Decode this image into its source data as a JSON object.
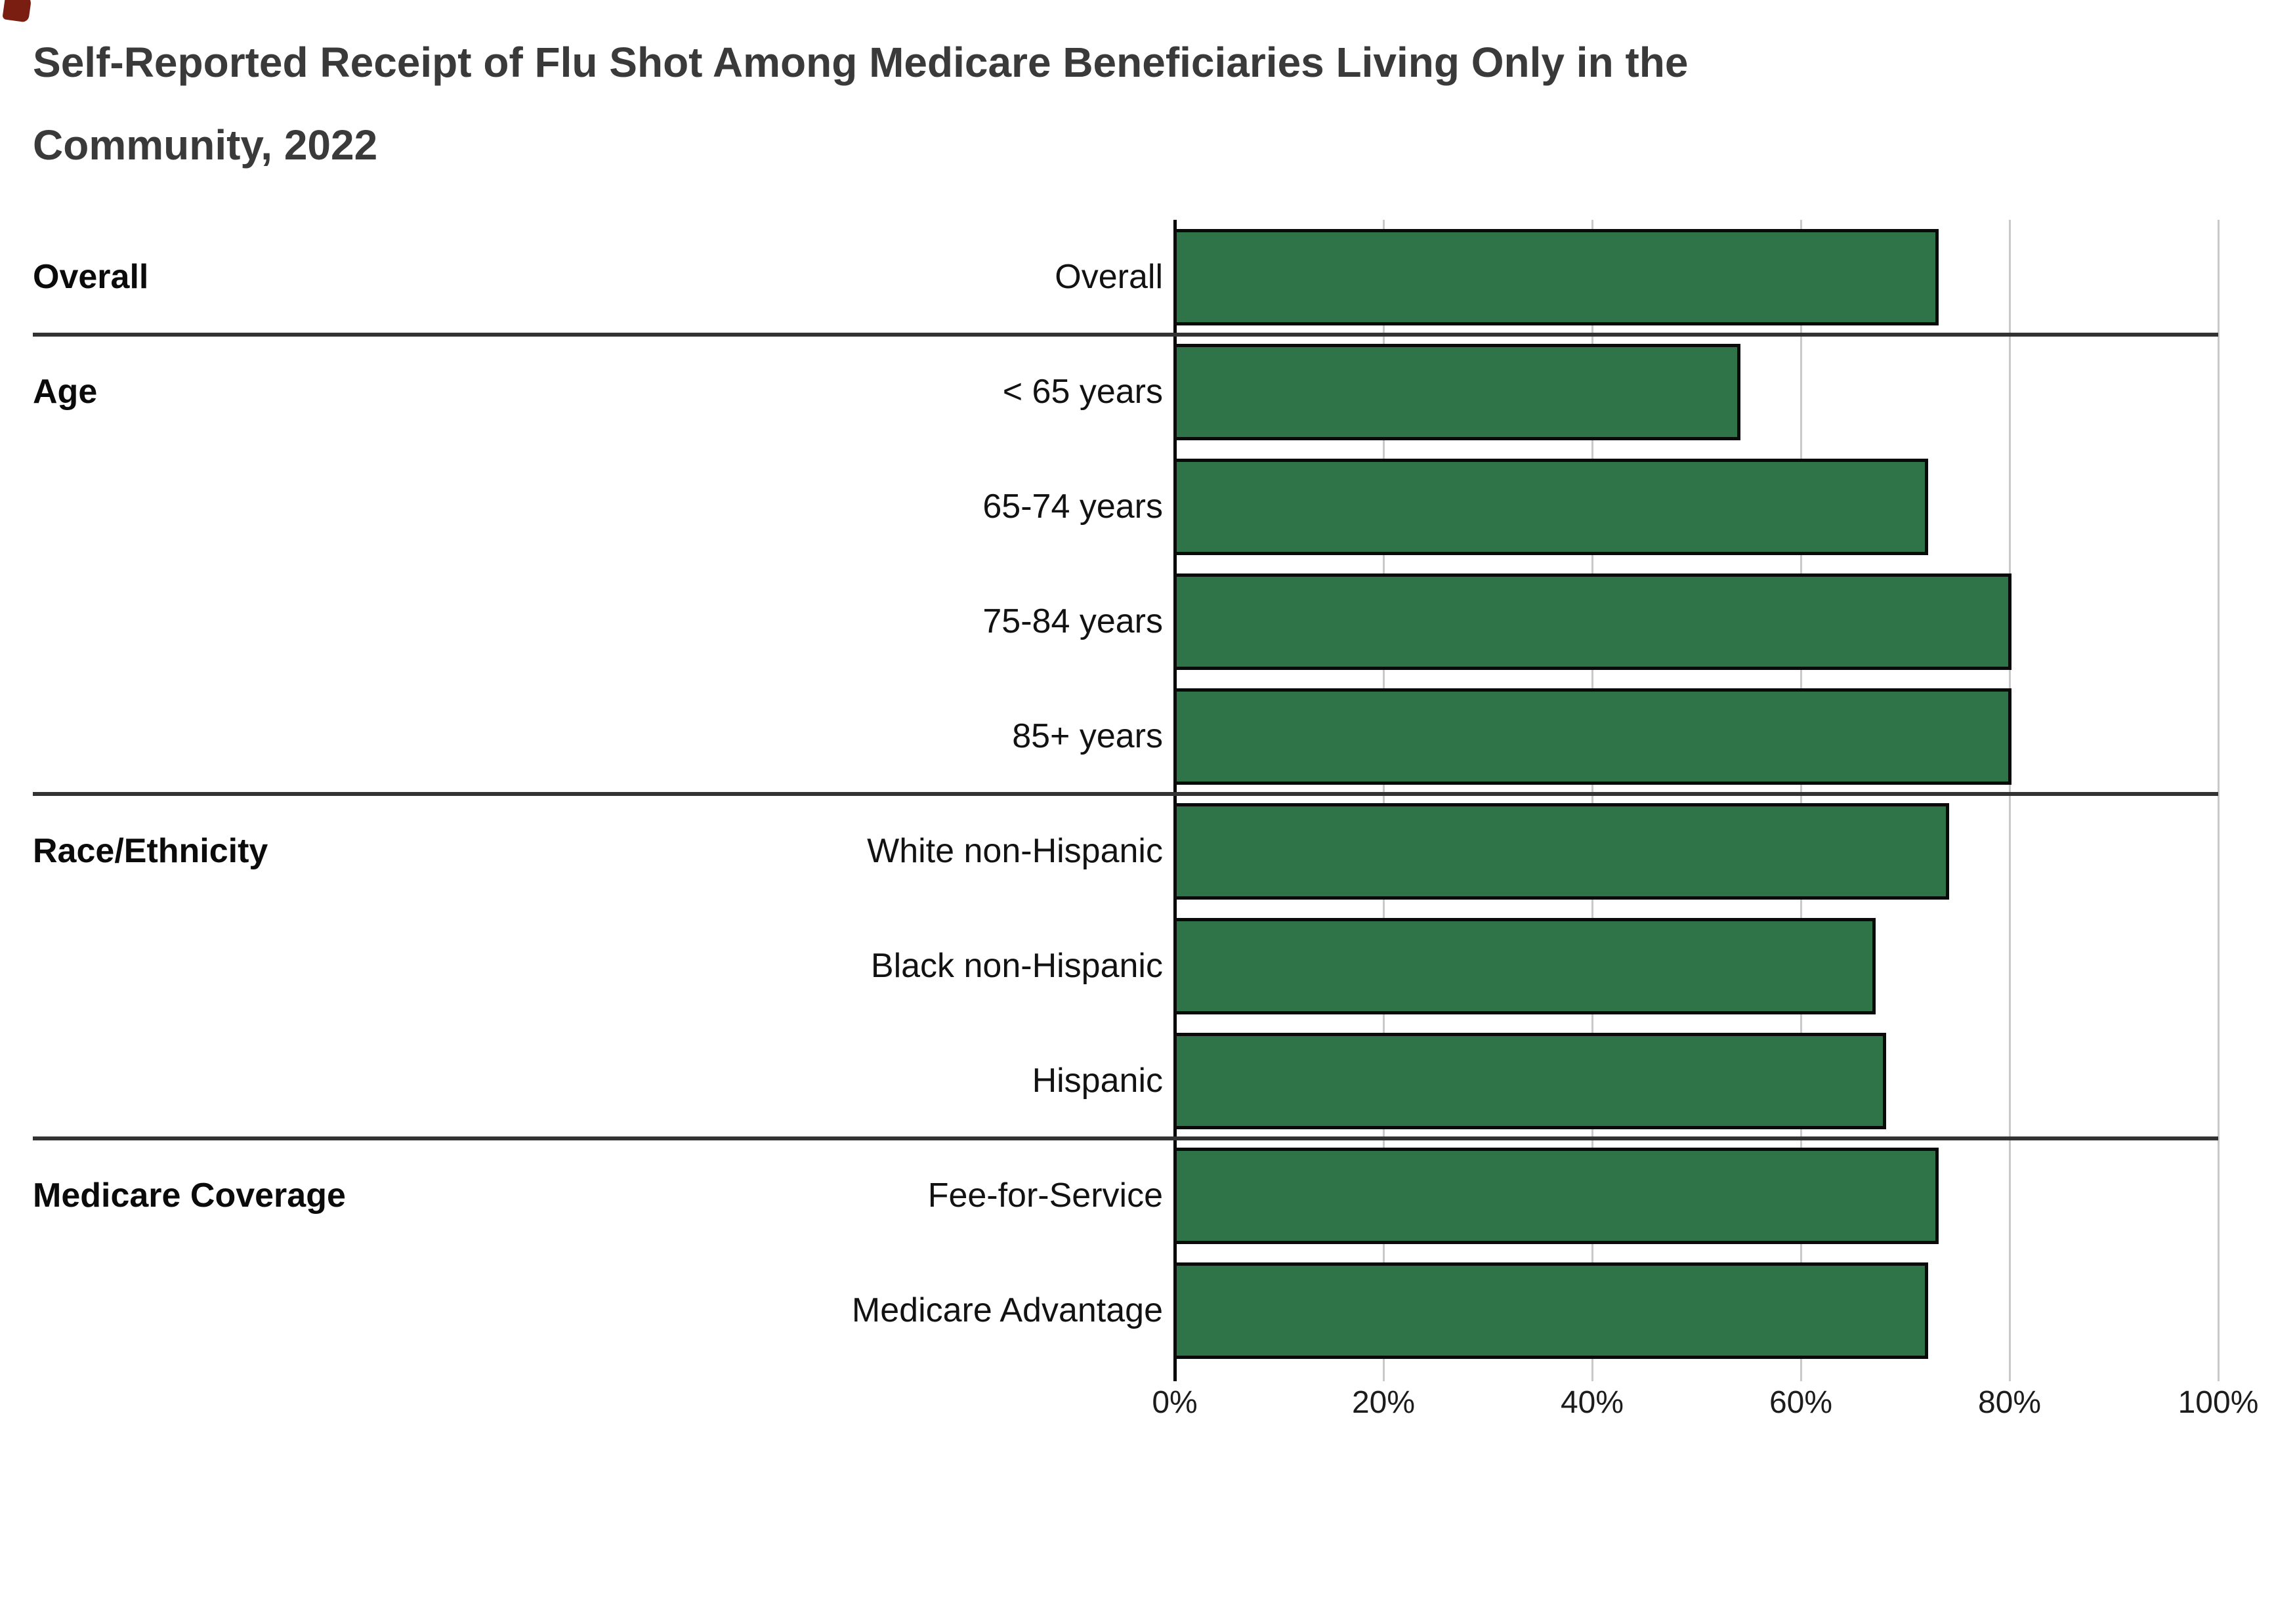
{
  "title": {
    "line1": "Self-Reported Receipt of Flu Shot Among Medicare Beneficiaries Living Only in the",
    "line2": "Community, 2022",
    "color": "#3a3a3a"
  },
  "chart_data": {
    "type": "bar",
    "orientation": "horizontal",
    "title": "Self-Reported Receipt of Flu Shot Among Medicare Beneficiaries Living Only in the Community, 2022",
    "xlabel": "",
    "ylabel": "",
    "xlim": [
      0,
      100
    ],
    "x_tick_labels": [
      "0%",
      "20%",
      "40%",
      "60%",
      "80%",
      "100%"
    ],
    "x_tick_values": [
      0,
      20,
      40,
      60,
      80,
      100
    ],
    "grid": "vertical-gridlines-on",
    "legend": "none",
    "bar_color": "#2F7348",
    "bar_border_color": "#0a0a0a",
    "gridline_color": "#c9c9c9",
    "separator_color": "#333333",
    "axis_color": "#000000",
    "groups": [
      {
        "label": "Overall",
        "rows": [
          {
            "label": "Overall",
            "value": 73
          }
        ]
      },
      {
        "label": "Age",
        "rows": [
          {
            "label": "< 65 years",
            "value": 54
          },
          {
            "label": "65-74 years",
            "value": 72
          },
          {
            "label": "75-84 years",
            "value": 80
          },
          {
            "label": "85+ years",
            "value": 80
          }
        ]
      },
      {
        "label": "Race/Ethnicity",
        "rows": [
          {
            "label": "White non-Hispanic",
            "value": 74
          },
          {
            "label": "Black non-Hispanic",
            "value": 67
          },
          {
            "label": "Hispanic",
            "value": 68
          }
        ]
      },
      {
        "label": "Medicare Coverage",
        "rows": [
          {
            "label": "Fee-for-Service",
            "value": 73
          },
          {
            "label": "Medicare Advantage",
            "value": 72
          }
        ]
      }
    ]
  },
  "decorations": {
    "corner_mark_color": "#7b1e12"
  }
}
